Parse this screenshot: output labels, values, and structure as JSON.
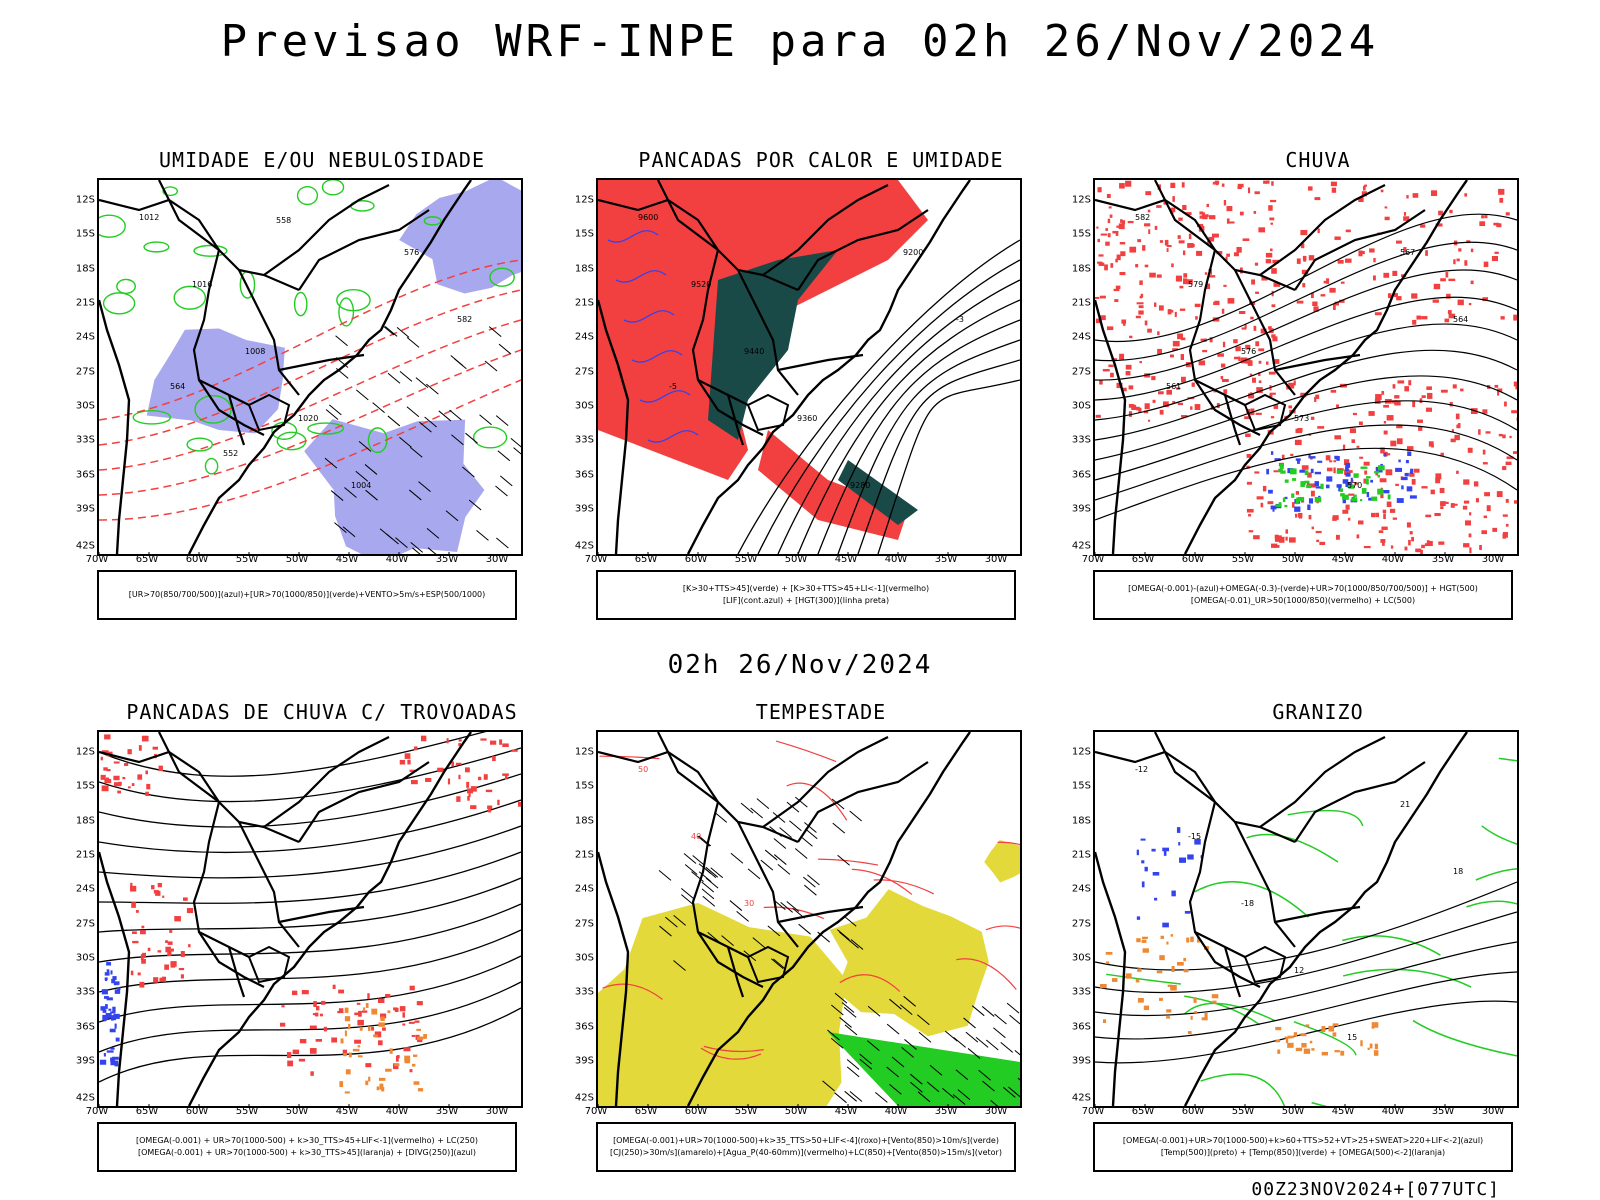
{
  "header": {
    "title": "Previsao WRF-INPE  para 02h 26/Nov/2024"
  },
  "middle": {
    "title": "02h 26/Nov/2024"
  },
  "footer": {
    "stamp": "00Z23NOV2024+[077UTC]"
  },
  "axes": {
    "lat_ticks": [
      "12S",
      "15S",
      "18S",
      "21S",
      "24S",
      "27S",
      "30S",
      "33S",
      "36S",
      "39S",
      "42S"
    ],
    "lon_ticks": [
      "70W",
      "65W",
      "60W",
      "55W",
      "50W",
      "45W",
      "40W",
      "35W",
      "30W"
    ]
  },
  "colors": {
    "red": "#f24040",
    "green": "#22cc22",
    "blue": "#3344ee",
    "lavender": "#a8a8ee",
    "darkteal": "#1a4a48",
    "yellow": "#e3d93a",
    "orange": "#ee8833",
    "black": "#000000"
  },
  "panels": [
    {
      "title": "UMIDADE E/OU NEBULOSIDADE",
      "legend": [
        "[UR>70(850/700/500)](azul)+[UR>70(1000/850)](verde)+VENTO>5m/s+ESP(500/1000)"
      ],
      "contour_labels": [
        "1012",
        "1016",
        "1008",
        "1020",
        "1004",
        "576",
        "582",
        "564",
        "552",
        "558"
      ]
    },
    {
      "title": "PANCADAS POR CALOR E UMIDADE",
      "legend": [
        "[K>30+TTS>45](verde) + [K>30+TTS>45+LI<-1](vermelho)",
        "[LIF](cont.azul) + [HGT(300)](linha preta)"
      ],
      "contour_labels": [
        "9600",
        "9520",
        "9440",
        "9360",
        "9280",
        "9200",
        "-3",
        "-5"
      ]
    },
    {
      "title": "CHUVA",
      "legend": [
        "[OMEGA(-0.001)-(azul)+OMEGA(-0.3)-(verde)+UR>70(1000/850/700/500)] + HGT(500)",
        "[OMEGA(-0.01)_UR>50(1000/850)(vermelho) + LC(500)"
      ],
      "contour_labels": [
        "582",
        "579",
        "576",
        "573",
        "570",
        "567",
        "564",
        "561"
      ]
    },
    {
      "title": "PANCADAS DE CHUVA C/ TROVOADAS",
      "legend": [
        "[OMEGA(-0.001) + UR>70(1000-500) + k>30_TTS>45+LIF<-1](vermelho) + LC(250)",
        "[OMEGA(-0.001) + UR>70(1000-500) + k>30_TTS>45](laranja) + [DIVG(250)](azul)"
      ],
      "contour_labels": []
    },
    {
      "title": "TEMPESTADE",
      "legend": [
        "[OMEGA(-0.001)+UR>70(1000-500)+k>35_TTS>50+LIF<-4](roxo)+[Vento(850)>10m/s](verde)",
        "[CJ(250)>30m/s](amarelo)+[Agua_P(40-60mm)](vermelho)+LC(850)+[Vento(850)>15m/s](vetor)"
      ],
      "contour_labels": [
        "50",
        "40",
        "30"
      ]
    },
    {
      "title": "GRANIZO",
      "legend": [
        "[OMEGA(-0.001)+UR>70(1000-500)+k>60+TTS>52+VT>25+SWEAT>220+LIF<-2](azul)",
        "[Temp(500)](preto) + [Temp(850)](verde) + [OMEGA(500)<-2](laranja)"
      ],
      "contour_labels": [
        "-12",
        "-15",
        "-18",
        "12",
        "15",
        "21",
        "18"
      ]
    }
  ]
}
